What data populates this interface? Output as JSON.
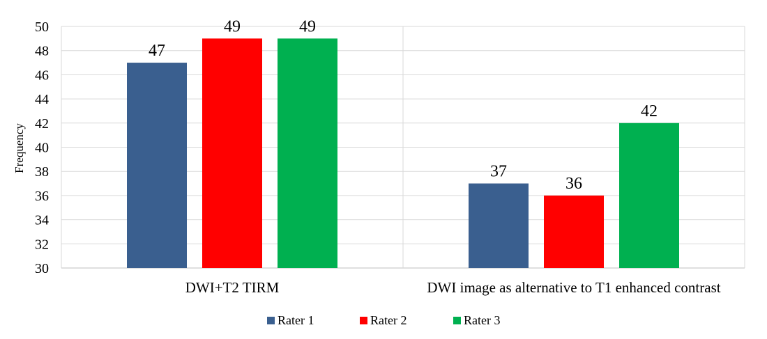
{
  "chart_data": {
    "type": "bar",
    "ylabel": "Frequency",
    "ylim": [
      30,
      50
    ],
    "yticks": [
      30,
      32,
      34,
      36,
      38,
      40,
      42,
      44,
      46,
      48,
      50
    ],
    "categories": [
      "DWI+T2 TIRM",
      "DWI image as alternative to T1 enhanced contrast"
    ],
    "series": [
      {
        "name": "Rater 1",
        "values": [
          47,
          37
        ],
        "color": "#3a5f8f"
      },
      {
        "name": "Rater 2",
        "values": [
          49,
          36
        ],
        "color": "#ff0000"
      },
      {
        "name": "Rater 3",
        "values": [
          49,
          42
        ],
        "color": "#00b050"
      }
    ],
    "grid": true,
    "legend_position": "bottom-center",
    "data_labels": true
  }
}
